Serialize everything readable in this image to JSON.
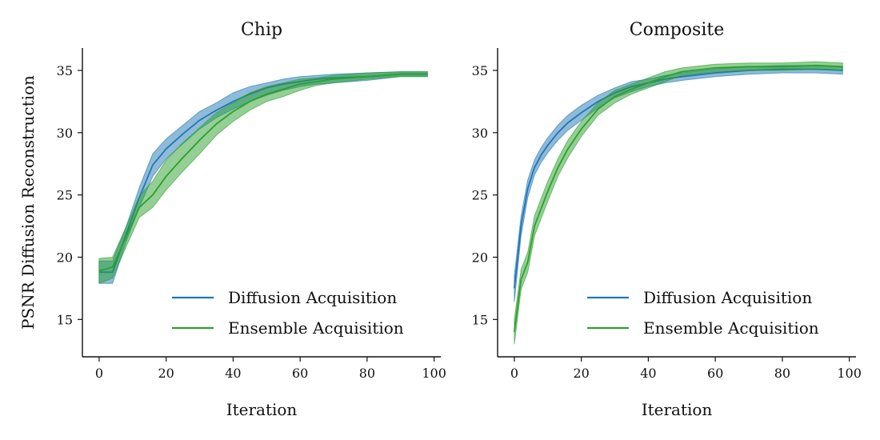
{
  "chart_data": [
    {
      "type": "line",
      "title": "Chip",
      "xlabel": "Iteration",
      "ylabel": "PSNR Diffusion Reconstruction",
      "xlim": [
        -5,
        102
      ],
      "ylim": [
        12,
        36.8
      ],
      "xticks": [
        0,
        20,
        40,
        60,
        80,
        100
      ],
      "yticks": [
        15,
        20,
        25,
        30,
        35
      ],
      "grid": false,
      "legend_position": "lower-right",
      "x": [
        0,
        4,
        8,
        12,
        16,
        20,
        25,
        30,
        35,
        40,
        45,
        50,
        55,
        60,
        65,
        70,
        80,
        90,
        98
      ],
      "series": [
        {
          "name": "Diffusion Acquisition",
          "color": "#1f77b4",
          "values": [
            18.8,
            18.8,
            21.8,
            24.8,
            27.4,
            28.7,
            29.9,
            31.0,
            31.8,
            32.5,
            33.1,
            33.6,
            33.9,
            34.1,
            34.3,
            34.4,
            34.5,
            34.7,
            34.7
          ],
          "upper": [
            19.7,
            19.7,
            22.4,
            25.6,
            28.3,
            29.5,
            30.6,
            31.7,
            32.4,
            33.2,
            33.7,
            34.0,
            34.3,
            34.5,
            34.6,
            34.7,
            34.8,
            34.9,
            34.9
          ],
          "lower": [
            17.9,
            17.9,
            21.2,
            24.0,
            26.5,
            27.9,
            29.1,
            30.3,
            31.2,
            31.9,
            32.5,
            33.0,
            33.4,
            33.7,
            33.9,
            34.0,
            34.2,
            34.5,
            34.5
          ]
        },
        {
          "name": "Ensemble Acquisition",
          "color": "#2ca02c",
          "values": [
            18.9,
            19.2,
            21.6,
            24.0,
            25.0,
            26.5,
            28.0,
            29.4,
            30.7,
            31.7,
            32.5,
            33.1,
            33.5,
            33.9,
            34.1,
            34.3,
            34.5,
            34.7,
            34.7
          ],
          "upper": [
            19.9,
            20.0,
            22.4,
            24.9,
            26.1,
            27.8,
            29.2,
            30.4,
            31.6,
            32.4,
            33.2,
            33.7,
            34.0,
            34.3,
            34.4,
            34.6,
            34.8,
            34.9,
            34.9
          ],
          "lower": [
            17.9,
            18.3,
            20.8,
            23.2,
            24.0,
            25.4,
            26.9,
            28.3,
            29.8,
            30.9,
            31.8,
            32.5,
            32.9,
            33.4,
            33.8,
            34.0,
            34.3,
            34.5,
            34.5
          ]
        }
      ]
    },
    {
      "type": "line",
      "title": "Composite",
      "xlabel": "Iteration",
      "ylabel": "",
      "xlim": [
        -5,
        102
      ],
      "ylim": [
        12,
        36.8
      ],
      "xticks": [
        0,
        20,
        40,
        60,
        80,
        100
      ],
      "yticks": [
        15,
        20,
        25,
        30,
        35
      ],
      "grid": false,
      "legend_position": "lower-right",
      "x": [
        0,
        2,
        4,
        6,
        8,
        10,
        13,
        16,
        20,
        25,
        30,
        35,
        40,
        45,
        50,
        60,
        70,
        80,
        90,
        98
      ],
      "series": [
        {
          "name": "Diffusion Acquisition",
          "color": "#1f77b4",
          "values": [
            17.5,
            22.5,
            25.5,
            27.2,
            28.2,
            29.0,
            30.0,
            30.8,
            31.6,
            32.5,
            33.2,
            33.7,
            34.0,
            34.3,
            34.5,
            34.8,
            35.0,
            35.1,
            35.1,
            35.0
          ],
          "upper": [
            18.5,
            23.3,
            26.2,
            27.8,
            28.8,
            29.6,
            30.6,
            31.4,
            32.2,
            33.0,
            33.6,
            34.1,
            34.3,
            34.6,
            34.8,
            35.1,
            35.3,
            35.4,
            35.4,
            35.3
          ],
          "lower": [
            16.4,
            21.7,
            24.8,
            26.6,
            27.6,
            28.4,
            29.4,
            30.2,
            31.0,
            32.0,
            32.8,
            33.3,
            33.7,
            34.0,
            34.2,
            34.5,
            34.7,
            34.8,
            34.8,
            34.7
          ]
        },
        {
          "name": "Ensemble Acquisition",
          "color": "#2ca02c",
          "values": [
            14.0,
            18.2,
            19.6,
            22.5,
            23.9,
            25.3,
            27.2,
            28.7,
            30.3,
            31.9,
            32.9,
            33.5,
            34.0,
            34.5,
            34.9,
            35.2,
            35.3,
            35.3,
            35.4,
            35.3
          ],
          "upper": [
            15.0,
            19.0,
            20.4,
            23.3,
            24.7,
            26.1,
            27.9,
            29.4,
            30.9,
            32.4,
            33.4,
            33.9,
            34.4,
            34.9,
            35.2,
            35.5,
            35.6,
            35.6,
            35.7,
            35.6
          ],
          "lower": [
            13.0,
            17.4,
            18.8,
            21.7,
            23.1,
            24.5,
            26.5,
            28.0,
            29.7,
            31.4,
            32.4,
            33.1,
            33.6,
            34.1,
            34.6,
            34.9,
            35.0,
            35.0,
            35.1,
            35.0
          ]
        }
      ]
    }
  ]
}
